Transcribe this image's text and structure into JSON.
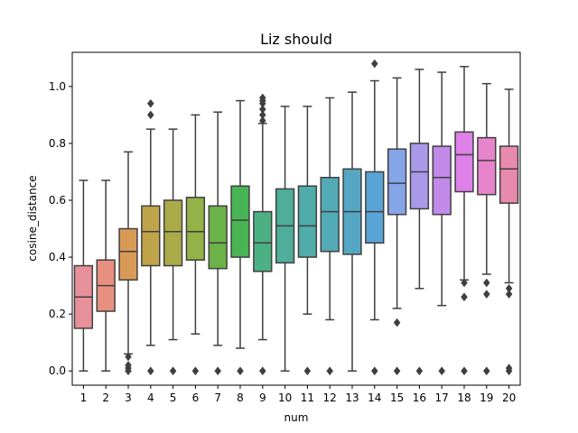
{
  "chart_data": {
    "type": "boxplot",
    "title": "Liz should",
    "xlabel": "num",
    "ylabel": "cosine_distance",
    "ylim": [
      -0.05,
      1.12
    ],
    "yticks": [
      0.0,
      0.2,
      0.4,
      0.6,
      0.8,
      1.0
    ],
    "ytick_labels": [
      "0.0",
      "0.2",
      "0.4",
      "0.6",
      "0.8",
      "1.0"
    ],
    "grid": false,
    "categories": [
      "1",
      "2",
      "3",
      "4",
      "5",
      "6",
      "7",
      "8",
      "9",
      "10",
      "11",
      "12",
      "13",
      "14",
      "15",
      "16",
      "17",
      "18",
      "19",
      "20"
    ],
    "colors": [
      "#e8909a",
      "#e89080",
      "#d99a58",
      "#c0a449",
      "#aaab48",
      "#93b248",
      "#6bb248",
      "#48b454",
      "#4cb085",
      "#4eae9a",
      "#50aca8",
      "#52aab5",
      "#55a7c4",
      "#5aa3d6",
      "#85a5e8",
      "#a89ae8",
      "#c18ae8",
      "#dd80e8",
      "#e884cb",
      "#e88aae"
    ],
    "boxes": [
      {
        "num": "1",
        "q1": 0.15,
        "median": 0.26,
        "q3": 0.37,
        "whislo": 0.0,
        "whishi": 0.67,
        "fliers": []
      },
      {
        "num": "2",
        "q1": 0.21,
        "median": 0.3,
        "q3": 0.39,
        "whislo": 0.0,
        "whishi": 0.67,
        "fliers": []
      },
      {
        "num": "3",
        "q1": 0.32,
        "median": 0.42,
        "q3": 0.5,
        "whislo": 0.06,
        "whishi": 0.77,
        "fliers": [
          0.05,
          0.02,
          0.01,
          0.0
        ]
      },
      {
        "num": "4",
        "q1": 0.37,
        "median": 0.49,
        "q3": 0.58,
        "whislo": 0.09,
        "whishi": 0.85,
        "fliers": [
          0.94,
          0.9,
          0.0
        ]
      },
      {
        "num": "5",
        "q1": 0.37,
        "median": 0.49,
        "q3": 0.6,
        "whislo": 0.11,
        "whishi": 0.85,
        "fliers": [
          0.0
        ]
      },
      {
        "num": "6",
        "q1": 0.39,
        "median": 0.49,
        "q3": 0.61,
        "whislo": 0.13,
        "whishi": 0.9,
        "fliers": [
          0.0
        ]
      },
      {
        "num": "7",
        "q1": 0.36,
        "median": 0.45,
        "q3": 0.58,
        "whislo": 0.09,
        "whishi": 0.91,
        "fliers": [
          0.0
        ]
      },
      {
        "num": "8",
        "q1": 0.4,
        "median": 0.53,
        "q3": 0.65,
        "whislo": 0.08,
        "whishi": 0.95,
        "fliers": [
          0.0
        ]
      },
      {
        "num": "9",
        "q1": 0.35,
        "median": 0.45,
        "q3": 0.56,
        "whislo": 0.11,
        "whishi": 0.87,
        "fliers": [
          0.96,
          0.95,
          0.94,
          0.92,
          0.9,
          0.88,
          0.0
        ]
      },
      {
        "num": "10",
        "q1": 0.38,
        "median": 0.51,
        "q3": 0.64,
        "whislo": 0.0,
        "whishi": 0.93,
        "fliers": []
      },
      {
        "num": "11",
        "q1": 0.4,
        "median": 0.51,
        "q3": 0.65,
        "whislo": 0.2,
        "whishi": 0.93,
        "fliers": [
          0.0
        ]
      },
      {
        "num": "12",
        "q1": 0.42,
        "median": 0.56,
        "q3": 0.68,
        "whislo": 0.18,
        "whishi": 0.96,
        "fliers": [
          0.0
        ]
      },
      {
        "num": "13",
        "q1": 0.41,
        "median": 0.56,
        "q3": 0.71,
        "whislo": 0.0,
        "whishi": 0.98,
        "fliers": []
      },
      {
        "num": "14",
        "q1": 0.45,
        "median": 0.56,
        "q3": 0.7,
        "whislo": 0.18,
        "whishi": 1.02,
        "fliers": [
          1.08,
          0.0
        ]
      },
      {
        "num": "15",
        "q1": 0.55,
        "median": 0.66,
        "q3": 0.78,
        "whislo": 0.22,
        "whishi": 1.03,
        "fliers": [
          0.17,
          0.0
        ]
      },
      {
        "num": "16",
        "q1": 0.57,
        "median": 0.7,
        "q3": 0.8,
        "whislo": 0.29,
        "whishi": 1.06,
        "fliers": [
          0.0
        ]
      },
      {
        "num": "17",
        "q1": 0.55,
        "median": 0.68,
        "q3": 0.79,
        "whislo": 0.23,
        "whishi": 1.05,
        "fliers": [
          0.0
        ]
      },
      {
        "num": "18",
        "q1": 0.63,
        "median": 0.76,
        "q3": 0.84,
        "whislo": 0.32,
        "whishi": 1.07,
        "fliers": [
          0.31,
          0.26,
          0.0
        ]
      },
      {
        "num": "19",
        "q1": 0.62,
        "median": 0.74,
        "q3": 0.82,
        "whislo": 0.34,
        "whishi": 1.01,
        "fliers": [
          0.31,
          0.27,
          0.0
        ]
      },
      {
        "num": "20",
        "q1": 0.59,
        "median": 0.71,
        "q3": 0.79,
        "whislo": 0.31,
        "whishi": 0.99,
        "fliers": [
          0.29,
          0.27,
          0.01,
          0.0
        ]
      }
    ]
  }
}
